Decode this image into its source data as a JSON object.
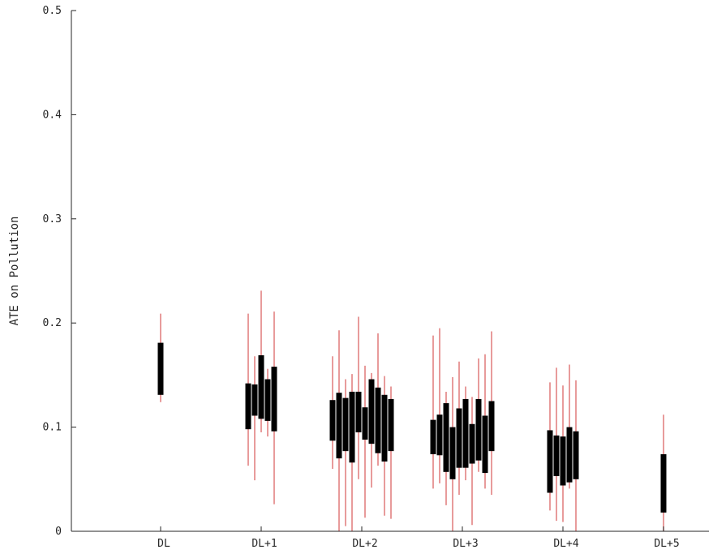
{
  "chart_data": {
    "type": "box",
    "title": "",
    "xlabel": "",
    "ylabel": "ATE on Pollution",
    "ylim": [
      0,
      0.5
    ],
    "yticks": [
      {
        "value": 0,
        "label": "0"
      },
      {
        "value": 0.1,
        "label": "0.1"
      },
      {
        "value": 0.2,
        "label": "0.2"
      },
      {
        "value": 0.3,
        "label": "0.3"
      },
      {
        "value": 0.4,
        "label": "0.4"
      },
      {
        "value": 0.5,
        "label": "0.5"
      }
    ],
    "categories": [
      "DL",
      "DL+1",
      "DL+2",
      "DL+3",
      "DL+4",
      "DL+5"
    ],
    "grid": false,
    "colors": {
      "box": "#000000",
      "whisker": "#e07a7a",
      "axis": "#262626"
    },
    "groups": [
      {
        "category": "DL",
        "boxes": [
          {
            "whisker_low": 0.124,
            "q1": 0.131,
            "q3": 0.181,
            "whisker_high": 0.209
          }
        ]
      },
      {
        "category": "DL+1",
        "boxes": [
          {
            "whisker_low": 0.063,
            "q1": 0.098,
            "q3": 0.142,
            "whisker_high": 0.209
          },
          {
            "whisker_low": 0.049,
            "q1": 0.111,
            "q3": 0.141,
            "whisker_high": 0.168
          },
          {
            "whisker_low": 0.095,
            "q1": 0.108,
            "q3": 0.169,
            "whisker_high": 0.231
          },
          {
            "whisker_low": 0.091,
            "q1": 0.106,
            "q3": 0.146,
            "whisker_high": 0.156
          },
          {
            "whisker_low": 0.026,
            "q1": 0.096,
            "q3": 0.158,
            "whisker_high": 0.211
          }
        ]
      },
      {
        "category": "DL+2",
        "boxes": [
          {
            "whisker_low": 0.06,
            "q1": 0.087,
            "q3": 0.126,
            "whisker_high": 0.168
          },
          {
            "whisker_low": 0.0,
            "q1": 0.07,
            "q3": 0.133,
            "whisker_high": 0.193
          },
          {
            "whisker_low": 0.005,
            "q1": 0.077,
            "q3": 0.128,
            "whisker_high": 0.146
          },
          {
            "whisker_low": 0.0,
            "q1": 0.066,
            "q3": 0.134,
            "whisker_high": 0.151
          },
          {
            "whisker_low": 0.05,
            "q1": 0.095,
            "q3": 0.134,
            "whisker_high": 0.206
          },
          {
            "whisker_low": 0.013,
            "q1": 0.088,
            "q3": 0.119,
            "whisker_high": 0.159
          },
          {
            "whisker_low": 0.042,
            "q1": 0.084,
            "q3": 0.146,
            "whisker_high": 0.152
          },
          {
            "whisker_low": 0.063,
            "q1": 0.075,
            "q3": 0.138,
            "whisker_high": 0.19
          },
          {
            "whisker_low": 0.015,
            "q1": 0.067,
            "q3": 0.131,
            "whisker_high": 0.149
          },
          {
            "whisker_low": 0.012,
            "q1": 0.077,
            "q3": 0.127,
            "whisker_high": 0.139
          }
        ]
      },
      {
        "category": "DL+3",
        "boxes": [
          {
            "whisker_low": 0.041,
            "q1": 0.074,
            "q3": 0.107,
            "whisker_high": 0.188
          },
          {
            "whisker_low": 0.046,
            "q1": 0.073,
            "q3": 0.112,
            "whisker_high": 0.195
          },
          {
            "whisker_low": 0.025,
            "q1": 0.057,
            "q3": 0.123,
            "whisker_high": 0.134
          },
          {
            "whisker_low": 0.0,
            "q1": 0.05,
            "q3": 0.1,
            "whisker_high": 0.148
          },
          {
            "whisker_low": 0.035,
            "q1": 0.061,
            "q3": 0.118,
            "whisker_high": 0.163
          },
          {
            "whisker_low": 0.049,
            "q1": 0.061,
            "q3": 0.127,
            "whisker_high": 0.139
          },
          {
            "whisker_low": 0.006,
            "q1": 0.065,
            "q3": 0.103,
            "whisker_high": 0.129
          },
          {
            "whisker_low": 0.057,
            "q1": 0.068,
            "q3": 0.127,
            "whisker_high": 0.166
          },
          {
            "whisker_low": 0.041,
            "q1": 0.056,
            "q3": 0.111,
            "whisker_high": 0.17
          },
          {
            "whisker_low": 0.035,
            "q1": 0.077,
            "q3": 0.125,
            "whisker_high": 0.192
          }
        ]
      },
      {
        "category": "DL+4",
        "boxes": [
          {
            "whisker_low": 0.02,
            "q1": 0.037,
            "q3": 0.097,
            "whisker_high": 0.143
          },
          {
            "whisker_low": 0.01,
            "q1": 0.053,
            "q3": 0.092,
            "whisker_high": 0.157
          },
          {
            "whisker_low": 0.009,
            "q1": 0.044,
            "q3": 0.091,
            "whisker_high": 0.14
          },
          {
            "whisker_low": 0.041,
            "q1": 0.047,
            "q3": 0.1,
            "whisker_high": 0.16
          },
          {
            "whisker_low": 0.0,
            "q1": 0.05,
            "q3": 0.096,
            "whisker_high": 0.145
          }
        ]
      },
      {
        "category": "DL+5",
        "boxes": [
          {
            "whisker_low": 0.0,
            "q1": 0.018,
            "q3": 0.074,
            "whisker_high": 0.112
          }
        ]
      }
    ]
  }
}
